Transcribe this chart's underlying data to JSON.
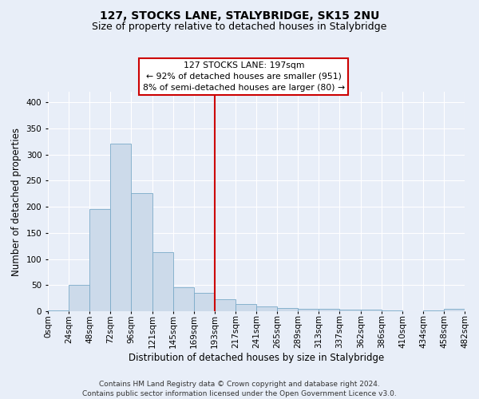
{
  "title": "127, STOCKS LANE, STALYBRIDGE, SK15 2NU",
  "subtitle": "Size of property relative to detached houses in Stalybridge",
  "xlabel": "Distribution of detached houses by size in Stalybridge",
  "ylabel": "Number of detached properties",
  "footer_line1": "Contains HM Land Registry data © Crown copyright and database right 2024.",
  "footer_line2": "Contains public sector information licensed under the Open Government Licence v3.0.",
  "annotation_title": "127 STOCKS LANE: 197sqm",
  "annotation_line1": "← 92% of detached houses are smaller (951)",
  "annotation_line2": "8% of semi-detached houses are larger (80) →",
  "vline_x": 193,
  "bar_bins": [
    0,
    24,
    48,
    72,
    96,
    121,
    145,
    169,
    193,
    217,
    241,
    265,
    289,
    313,
    337,
    362,
    386,
    410,
    434,
    458,
    482
  ],
  "bar_heights": [
    2,
    51,
    196,
    320,
    226,
    113,
    46,
    35,
    23,
    14,
    9,
    6,
    5,
    4,
    3,
    3,
    1,
    0,
    1,
    5
  ],
  "bar_color": "#ccdaea",
  "bar_edgecolor": "#7aaac8",
  "vline_color": "#cc0000",
  "annotation_box_edgecolor": "#cc0000",
  "background_color": "#e8eef8",
  "plot_background": "#e8eef8",
  "ylim": [
    0,
    420
  ],
  "yticks": [
    0,
    50,
    100,
    150,
    200,
    250,
    300,
    350,
    400
  ],
  "grid_color": "#ffffff",
  "title_fontsize": 10,
  "subtitle_fontsize": 9,
  "label_fontsize": 8.5,
  "tick_fontsize": 7.5,
  "footer_fontsize": 6.5
}
